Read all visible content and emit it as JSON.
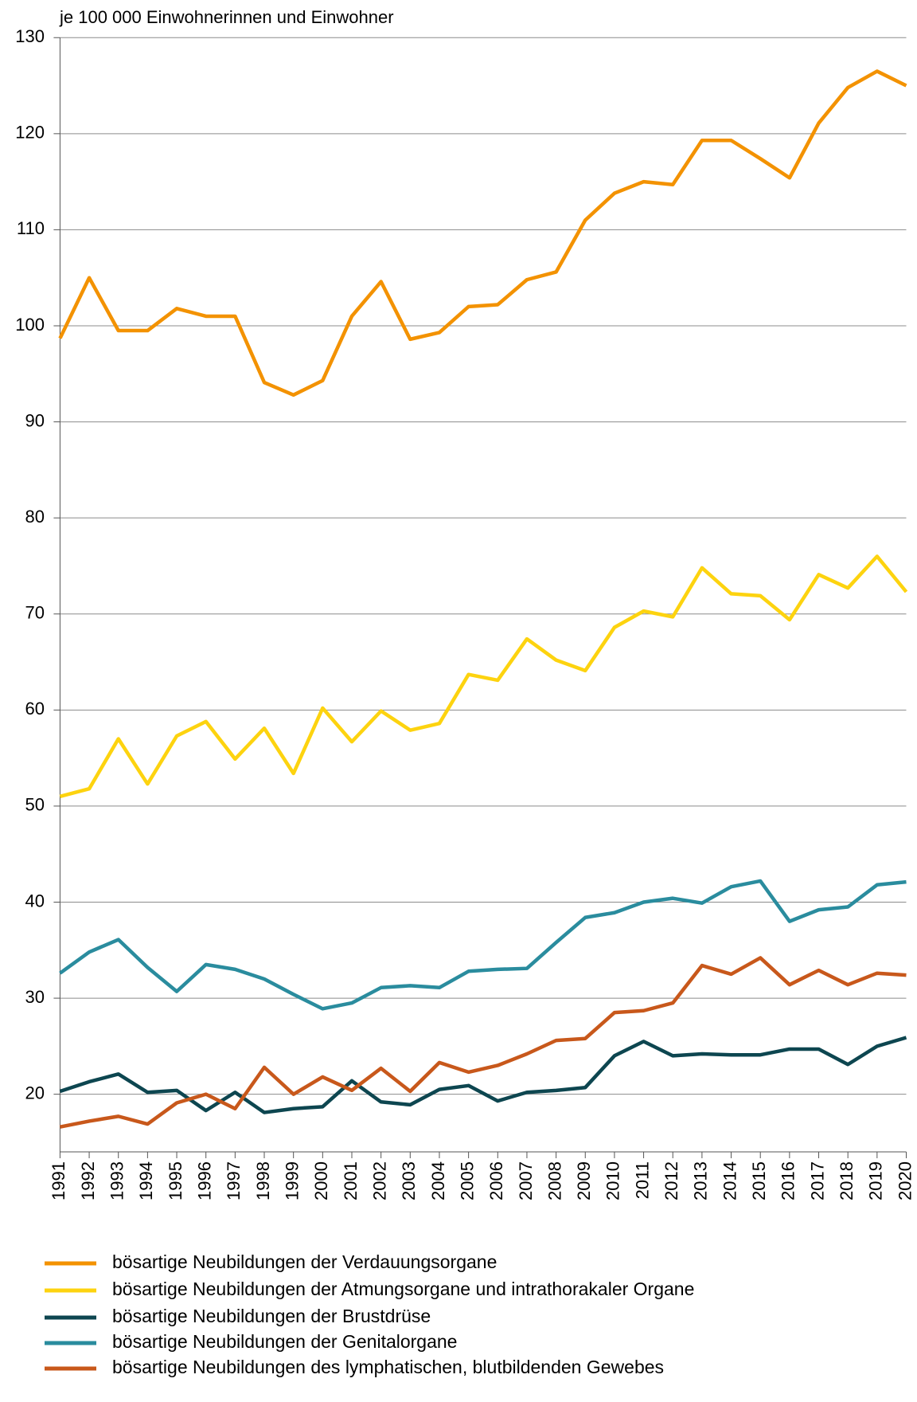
{
  "chart_data": {
    "type": "line",
    "y_axis_label": "je 100 000 Einwohnerinnen und Einwohner",
    "x": [
      1991,
      1992,
      1993,
      1994,
      1995,
      1996,
      1997,
      1998,
      1999,
      2000,
      2001,
      2002,
      2003,
      2004,
      2005,
      2006,
      2007,
      2008,
      2009,
      2010,
      2011,
      2012,
      2013,
      2014,
      2015,
      2016,
      2017,
      2018,
      2019,
      2020
    ],
    "xlim": [
      1991,
      2020
    ],
    "xticks": [
      1991,
      1992,
      1993,
      1994,
      1995,
      1996,
      1997,
      1998,
      1999,
      2000,
      2001,
      2002,
      2003,
      2004,
      2005,
      2006,
      2007,
      2008,
      2009,
      2010,
      2011,
      2012,
      2013,
      2014,
      2015,
      2016,
      2017,
      2018,
      2019,
      2020
    ],
    "ylim": [
      14,
      130
    ],
    "yticks": [
      20,
      30,
      40,
      50,
      60,
      70,
      80,
      90,
      100,
      110,
      120,
      130
    ],
    "grid": true,
    "legend": "bottom",
    "series": [
      {
        "name": "bösartige Neubildungen der Verdauungsorgane",
        "color": "#f39200",
        "values": [
          98.7,
          105,
          99.5,
          99.5,
          101.8,
          101,
          101,
          94.1,
          92.8,
          94.3,
          101,
          104.6,
          98.6,
          99.3,
          102,
          102.2,
          104.8,
          105.6,
          111,
          113.8,
          115,
          114.7,
          119.3,
          119.3,
          117.4,
          115.4,
          121.1,
          124.8,
          126.5,
          125
        ]
      },
      {
        "name": "bösartige Neubildungen der Atmungsorgane und intrathorakaler Organe",
        "color": "#fdd30f",
        "values": [
          51,
          51.8,
          57,
          52.3,
          57.3,
          58.8,
          54.9,
          58.1,
          53.4,
          60.2,
          56.7,
          59.9,
          57.9,
          58.6,
          63.7,
          63.1,
          67.4,
          65.2,
          64.1,
          68.6,
          70.3,
          69.7,
          74.8,
          72.1,
          71.9,
          69.4,
          74.1,
          72.7,
          76,
          72.3
        ]
      },
      {
        "name": "bösartige Neubildungen der Brustdrüse",
        "color": "#0d4650",
        "values": [
          20.3,
          21.3,
          22.1,
          20.2,
          20.4,
          18.3,
          20.2,
          18.1,
          18.5,
          18.7,
          21.4,
          19.2,
          18.9,
          20.5,
          20.9,
          19.3,
          20.2,
          20.4,
          20.7,
          24,
          25.5,
          24,
          24.2,
          24.1,
          24.1,
          24.7,
          24.7,
          23.1,
          25,
          25.9
        ]
      },
      {
        "name": "bösartige Neubildungen der Genitalorgane",
        "color": "#2a8c9e",
        "values": [
          32.6,
          34.8,
          36.1,
          33.2,
          30.7,
          33.5,
          33,
          32,
          30.4,
          28.9,
          29.5,
          31.1,
          31.3,
          31.1,
          32.8,
          33,
          33.1,
          35.8,
          38.4,
          38.9,
          40,
          40.4,
          39.9,
          41.6,
          42.2,
          38,
          39.2,
          39.5,
          41.8,
          42.1
        ]
      },
      {
        "name": "bösartige Neubildungen des lymphatischen, blutbildenden Gewebes",
        "color": "#c8581b",
        "values": [
          16.6,
          17.2,
          17.7,
          16.9,
          19.1,
          20,
          18.5,
          22.8,
          20,
          21.8,
          20.4,
          22.7,
          20.3,
          23.3,
          22.3,
          23,
          24.2,
          25.6,
          25.8,
          28.5,
          28.7,
          29.5,
          33.4,
          32.5,
          34.2,
          31.4,
          32.9,
          31.4,
          32.6,
          32.4
        ]
      }
    ]
  }
}
